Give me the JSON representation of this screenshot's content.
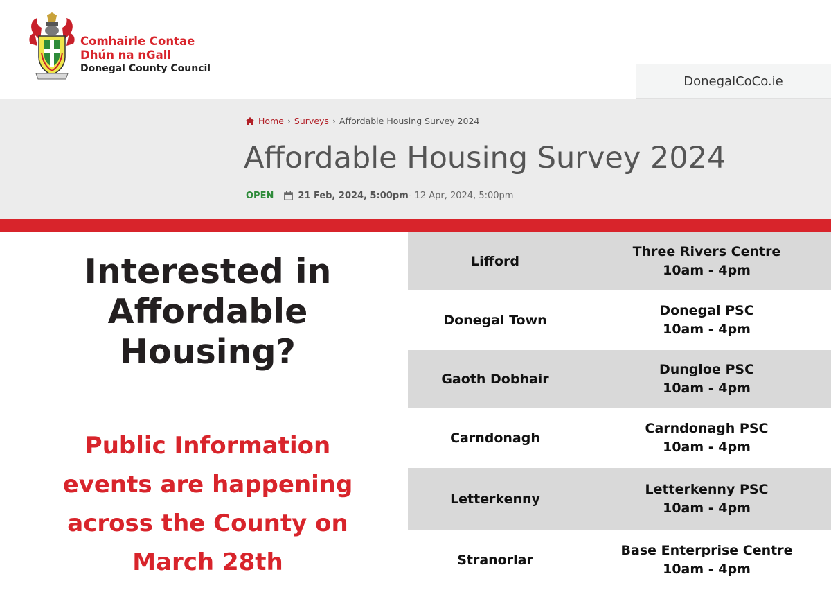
{
  "header": {
    "council_name_irish_line1": "Comhairle Contae",
    "council_name_irish_line2": "Dhún na nGall",
    "council_name_english": "Donegal County Council",
    "site_link": "DonegalCoCo.ie",
    "brand_red": "#d8242b"
  },
  "breadcrumb": {
    "home": "Home",
    "surveys": "Surveys",
    "current": "Affordable Housing Survey 2024"
  },
  "survey": {
    "title": "Affordable Housing Survey 2024",
    "status": "OPEN",
    "date_start": "21 Feb, 2024, 5:00pm",
    "date_end": " - 12 Apr, 2024, 5:00pm"
  },
  "promo": {
    "heading_line1": "Interested in",
    "heading_line2": "Affordable",
    "heading_line3": "Housing?",
    "sub_line1": "Public Information",
    "sub_line2": "events are happening",
    "sub_line3": "across the County on",
    "sub_line4": "March 28th"
  },
  "events": [
    {
      "town": "Lifford",
      "venue": "Three Rivers Centre",
      "time": "10am - 4pm",
      "shaded": true
    },
    {
      "town": "Donegal Town",
      "venue": "Donegal PSC",
      "time": "10am - 4pm",
      "shaded": false
    },
    {
      "town": "Gaoth Dobhair",
      "venue": "Dungloe PSC",
      "time": "10am - 4pm",
      "shaded": true
    },
    {
      "town": "Carndonagh",
      "venue": "Carndonagh PSC",
      "time": "10am - 4pm",
      "shaded": false
    },
    {
      "town": "Letterkenny",
      "venue": "Letterkenny PSC",
      "time": "10am - 4pm",
      "shaded": true
    },
    {
      "town": "Stranorlar",
      "venue": "Base Enterprise Centre",
      "time": "10am - 4pm",
      "shaded": false
    }
  ]
}
